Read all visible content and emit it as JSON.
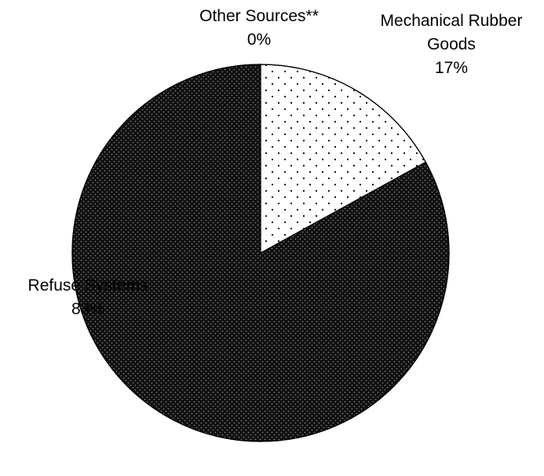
{
  "chart_data": {
    "type": "pie",
    "title": "",
    "slices": [
      {
        "label_lines": [
          "Other Sources**"
        ],
        "value": 0,
        "value_label": "0%",
        "fill": "pattern-dense-light",
        "color": "#ffffff"
      },
      {
        "label_lines": [
          "Mechanical Rubber",
          "Goods"
        ],
        "value": 17,
        "value_label": "17%",
        "fill": "pattern-sparse-dots",
        "color": "#ffffff"
      },
      {
        "label_lines": [
          "Refuse Systems"
        ],
        "value": 83,
        "value_label": "83%",
        "fill": "pattern-dark-dots",
        "color": "#1a1a1a"
      }
    ],
    "start_angle_deg": 0,
    "direction": "clockwise",
    "outline_color": "#000000"
  }
}
